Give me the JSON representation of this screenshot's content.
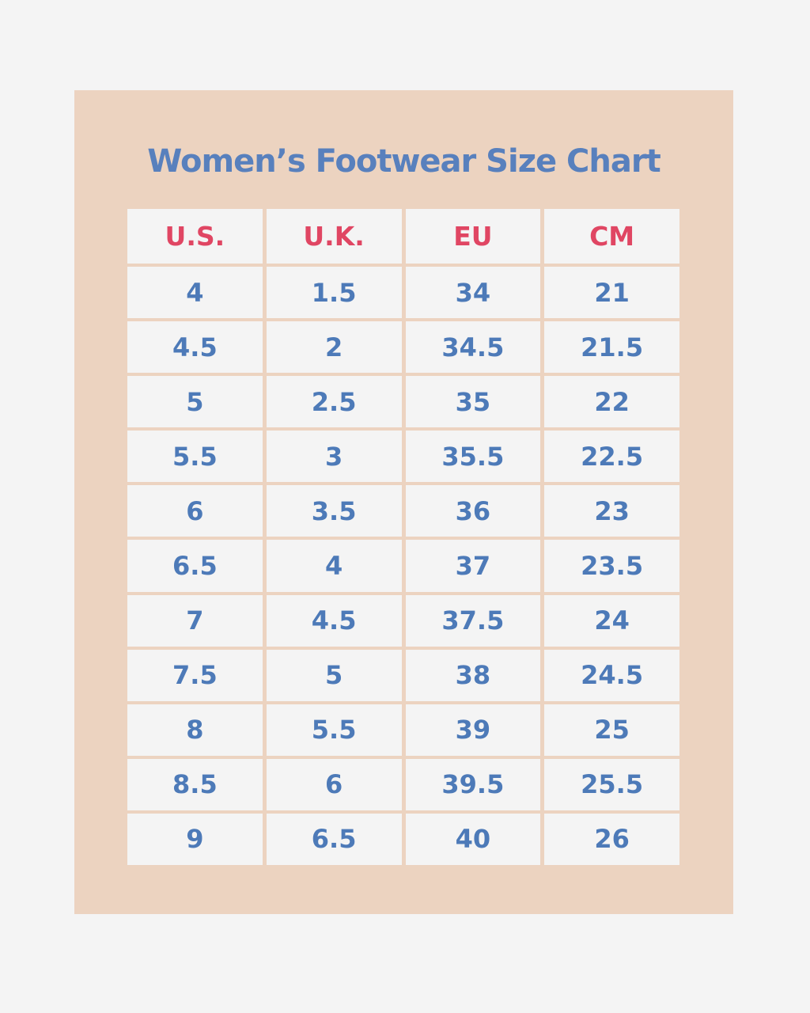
{
  "title": "Women’s Footwear Size Chart",
  "colors": {
    "page_background": "#f4f4f4",
    "card_background": "#ecd3c0",
    "title": "#5880bd",
    "header_text": "#e04663",
    "cell_text": "#4d7ab8"
  },
  "table": {
    "headers": [
      "U.S.",
      "U.K.",
      "EU",
      "CM"
    ],
    "rows": [
      [
        "4",
        "1.5",
        "34",
        "21"
      ],
      [
        "4.5",
        "2",
        "34.5",
        "21.5"
      ],
      [
        "5",
        "2.5",
        "35",
        "22"
      ],
      [
        "5.5",
        "3",
        "35.5",
        "22.5"
      ],
      [
        "6",
        "3.5",
        "36",
        "23"
      ],
      [
        "6.5",
        "4",
        "37",
        "23.5"
      ],
      [
        "7",
        "4.5",
        "37.5",
        "24"
      ],
      [
        "7.5",
        "5",
        "38",
        "24.5"
      ],
      [
        "8",
        "5.5",
        "39",
        "25"
      ],
      [
        "8.5",
        "6",
        "39.5",
        "25.5"
      ],
      [
        "9",
        "6.5",
        "40",
        "26"
      ]
    ]
  }
}
